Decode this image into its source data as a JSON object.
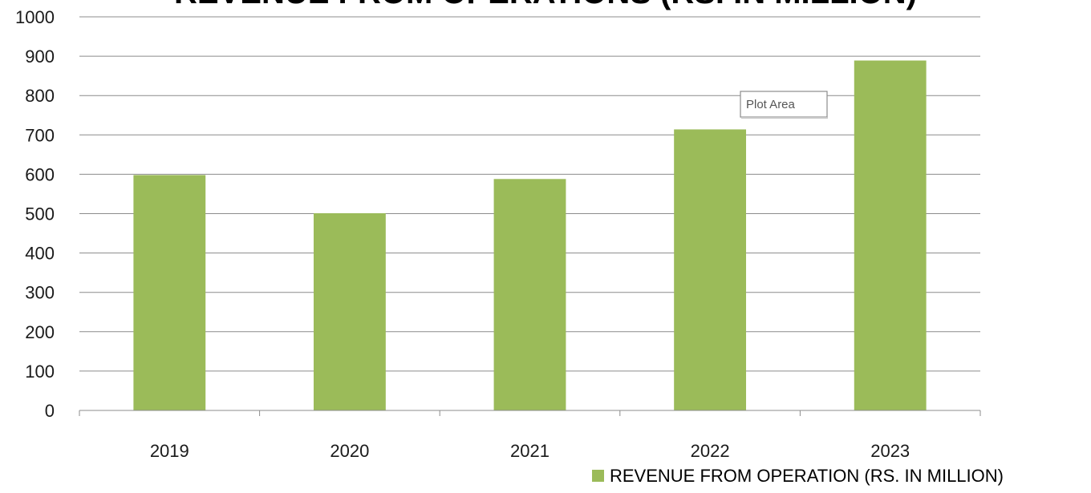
{
  "chart_data": {
    "type": "bar",
    "title": "REVENUE FROM OPERATIONS  (RS. IN MILLION)",
    "categories": [
      "2019",
      "2020",
      "2021",
      "2022",
      "2023"
    ],
    "series": [
      {
        "name": "REVENUE FROM OPERATION (RS. IN MILLION)",
        "values": [
          598,
          501,
          588,
          714,
          889
        ],
        "color": "#9bbb59"
      }
    ],
    "ylim": [
      0,
      1000
    ],
    "yticks": [
      "0",
      "100",
      "200",
      "300",
      "400",
      "500",
      "600",
      "700",
      "800",
      "900",
      "1000"
    ],
    "grid": true,
    "legend_position": "bottom-right"
  },
  "tooltip": {
    "label": "Plot Area"
  }
}
